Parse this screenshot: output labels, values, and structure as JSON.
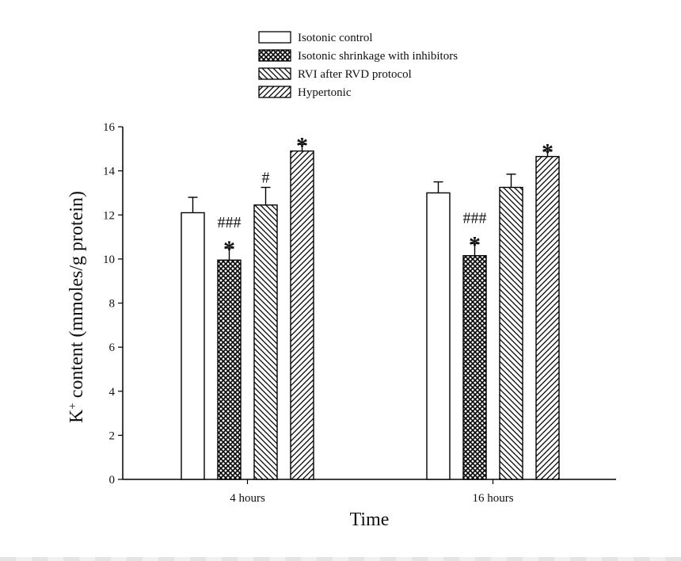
{
  "chart_data": {
    "type": "bar",
    "title": "",
    "xlabel": "Time",
    "ylabel": "K",
    "ylabel_sup": "+",
    "ylabel_rest": " content (mmoles/g protein)",
    "ylim": [
      0,
      16
    ],
    "yticks": [
      0,
      2,
      4,
      6,
      8,
      10,
      12,
      14,
      16
    ],
    "categories": [
      "4 hours",
      "16 hours"
    ],
    "legend_position": "top-center",
    "grid": false,
    "series": [
      {
        "name": "Isotonic control",
        "pattern": "solid-white",
        "values": [
          12.1,
          13.0
        ],
        "errors": [
          0.7,
          0.5
        ],
        "annotations": [
          [
            "",
            ""
          ],
          [
            "",
            ""
          ]
        ]
      },
      {
        "name": "Isotonic shrinkage with inhibitors",
        "pattern": "crosshatch",
        "values": [
          9.95,
          10.15
        ],
        "errors": [
          0.55,
          0.55
        ],
        "annotations": [
          [
            "###",
            "*"
          ],
          [
            "###",
            "*"
          ]
        ]
      },
      {
        "name": "RVI after RVD protocol",
        "pattern": "back-diagonal",
        "values": [
          12.45,
          13.25
        ],
        "errors": [
          0.8,
          0.6
        ],
        "annotations": [
          [
            "#",
            ""
          ],
          [
            "",
            ""
          ]
        ]
      },
      {
        "name": "Hypertonic",
        "pattern": "forward-diagonal",
        "values": [
          14.9,
          14.65
        ],
        "errors": [
          0.3,
          0.25
        ],
        "annotations": [
          [
            "",
            "*"
          ],
          [
            "",
            "*"
          ]
        ]
      }
    ],
    "colors": {
      "ink": "#000000",
      "bar_fill": "#ffffff"
    }
  }
}
